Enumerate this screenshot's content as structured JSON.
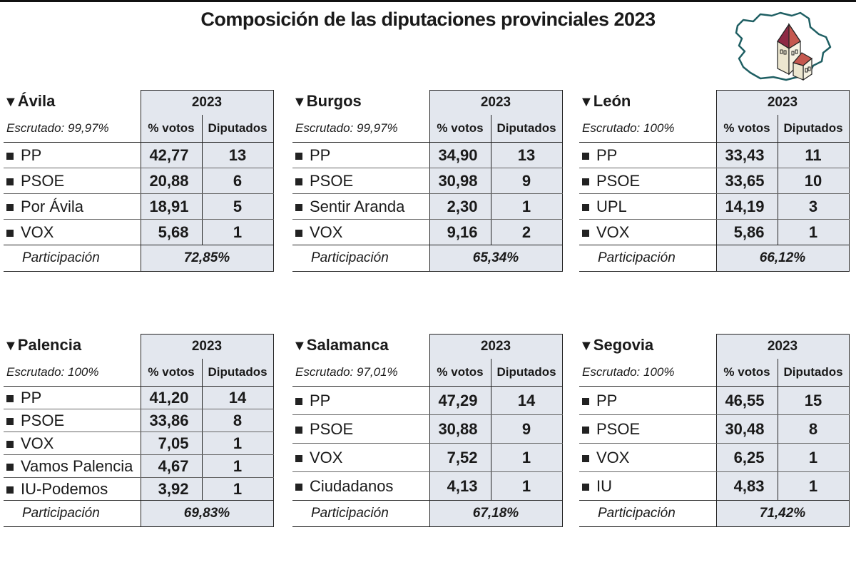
{
  "title": "Composición de las diputaciones provinciales 2023",
  "colors": {
    "shade": "#e3e7ee",
    "map_outline": "#1f5f63",
    "roof": "#8e2a45"
  },
  "chart_data": {
    "type": "table",
    "title": "Composición de las diputaciones provinciales 2023",
    "year_label": "2023",
    "columns": [
      "% votos",
      "Diputados"
    ],
    "participation_label": "Participación",
    "tables": [
      {
        "province": "Ávila",
        "scrutiny": "Escrutado: 99,97%",
        "rows": [
          {
            "party": "PP",
            "votes": "42,77",
            "seats": "13"
          },
          {
            "party": "PSOE",
            "votes": "20,88",
            "seats": "6"
          },
          {
            "party": "Por Ávila",
            "votes": "18,91",
            "seats": "5"
          },
          {
            "party": "VOX",
            "votes": "5,68",
            "seats": "1"
          }
        ],
        "participation": "72,85%"
      },
      {
        "province": "Burgos",
        "scrutiny": "Escrutado: 99,97%",
        "rows": [
          {
            "party": "PP",
            "votes": "34,90",
            "seats": "13"
          },
          {
            "party": "PSOE",
            "votes": "30,98",
            "seats": "9"
          },
          {
            "party": "Sentir Aranda",
            "votes": "2,30",
            "seats": "1"
          },
          {
            "party": "VOX",
            "votes": "9,16",
            "seats": "2"
          }
        ],
        "participation": "65,34%"
      },
      {
        "province": "León",
        "scrutiny": "Escrutado: 100%",
        "rows": [
          {
            "party": "PP",
            "votes": "33,43",
            "seats": "11"
          },
          {
            "party": "PSOE",
            "votes": "33,65",
            "seats": "10"
          },
          {
            "party": "UPL",
            "votes": "14,19",
            "seats": "3"
          },
          {
            "party": "VOX",
            "votes": "5,86",
            "seats": "1"
          }
        ],
        "participation": "66,12%"
      },
      {
        "province": "Palencia",
        "scrutiny": "Escrutado: 100%",
        "rows": [
          {
            "party": "PP",
            "votes": "41,20",
            "seats": "14"
          },
          {
            "party": "PSOE",
            "votes": "33,86",
            "seats": "8"
          },
          {
            "party": "VOX",
            "votes": "7,05",
            "seats": "1"
          },
          {
            "party": "Vamos Palencia",
            "votes": "4,67",
            "seats": "1"
          },
          {
            "party": "IU-Podemos",
            "votes": "3,92",
            "seats": "1"
          }
        ],
        "participation": "69,83%"
      },
      {
        "province": "Salamanca",
        "scrutiny": "Escrutado: 97,01%",
        "rows": [
          {
            "party": "PP",
            "votes": "47,29",
            "seats": "14"
          },
          {
            "party": "PSOE",
            "votes": "30,88",
            "seats": "9"
          },
          {
            "party": "VOX",
            "votes": "7,52",
            "seats": "1"
          },
          {
            "party": "Ciudadanos",
            "votes": "4,13",
            "seats": "1"
          }
        ],
        "participation": "67,18%"
      },
      {
        "province": "Segovia",
        "scrutiny": "Escrutado: 100%",
        "rows": [
          {
            "party": "PP",
            "votes": "46,55",
            "seats": "15"
          },
          {
            "party": "PSOE",
            "votes": "30,48",
            "seats": "8"
          },
          {
            "party": "VOX",
            "votes": "6,25",
            "seats": "1"
          },
          {
            "party": "IU",
            "votes": "4,83",
            "seats": "1"
          }
        ],
        "participation": "71,42%"
      }
    ]
  }
}
